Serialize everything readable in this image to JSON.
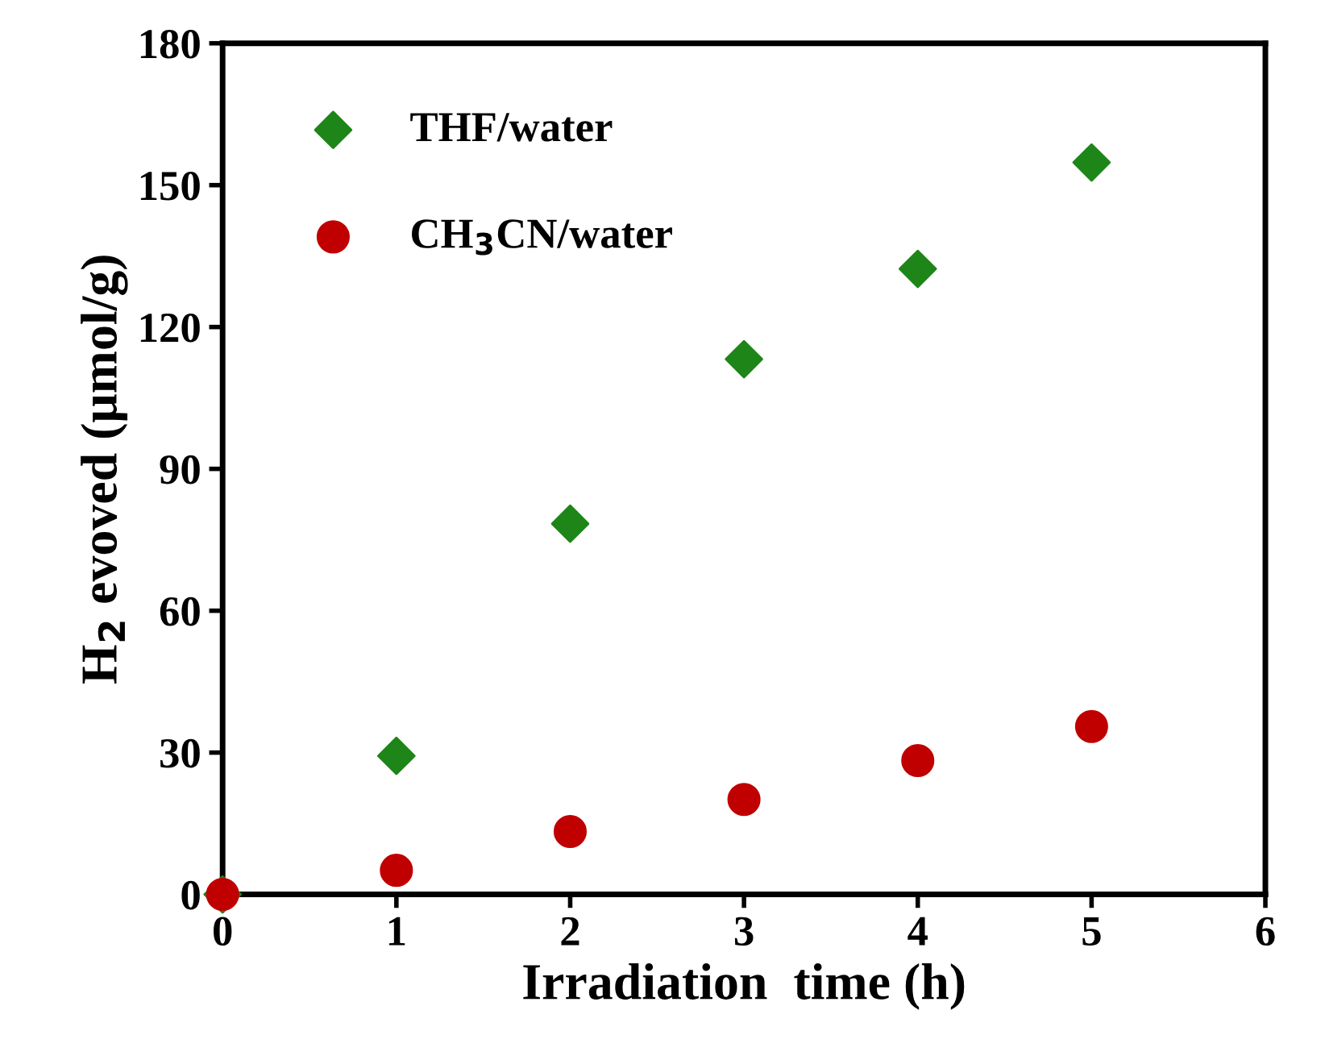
{
  "chart_data": {
    "type": "scatter",
    "xlabel": "Irradiation  time (h)",
    "ylabel": "H$_{2}$ evoved (μmol/g)",
    "xlim": [
      0,
      6
    ],
    "xticks": [
      0,
      1,
      2,
      3,
      4,
      5,
      6
    ],
    "ylim": [
      0,
      180
    ],
    "yticks": [
      0,
      30,
      60,
      90,
      120,
      150,
      180
    ],
    "grid": false,
    "legend": "top left",
    "series": [
      {
        "name": "THF/water",
        "color": "#1e8518",
        "marker": "diamond",
        "x": [
          0,
          1,
          2,
          3,
          4,
          5
        ],
        "values": [
          0,
          29.3,
          78.4,
          113.2,
          132.3,
          154.8
        ]
      },
      {
        "name": "CH$_{3}$CN/water",
        "color": "#c00000",
        "marker": "circle",
        "x": [
          0,
          1,
          2,
          3,
          4,
          5
        ],
        "values": [
          0,
          5.1,
          13.3,
          20.1,
          28.3,
          35.5
        ]
      }
    ]
  }
}
